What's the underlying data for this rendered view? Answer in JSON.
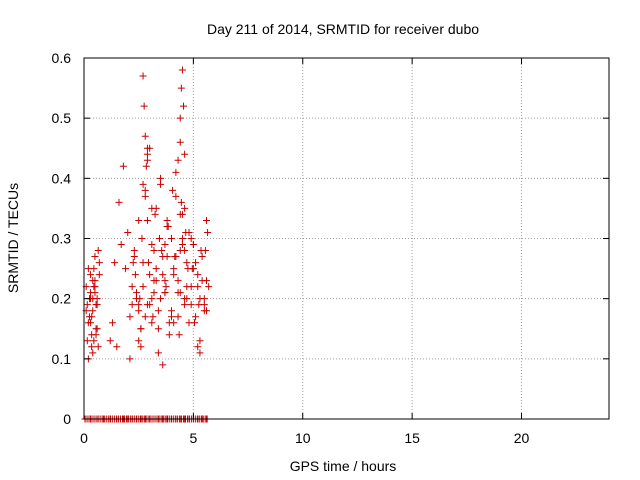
{
  "chart_data": {
    "type": "scatter",
    "title": "Day 211 of 2014, SRMTID for receiver dubo",
    "xlabel": "GPS time / hours",
    "ylabel": "SRMTID / TECUs",
    "xlim": [
      0,
      24
    ],
    "ylim": [
      0,
      0.6
    ],
    "xticks": [
      0,
      5,
      10,
      15,
      20
    ],
    "xtick_labels": [
      "0",
      "5",
      "10",
      "15",
      "20"
    ],
    "yticks": [
      0,
      0.1,
      0.2,
      0.3,
      0.4,
      0.5,
      0.6
    ],
    "ytick_labels": [
      "0",
      "0.1",
      "0.2",
      "0.3",
      "0.4",
      "0.5",
      "0.6"
    ],
    "grid": true,
    "marker": "+",
    "color": "#cc0000",
    "series": [
      {
        "name": "SRMTID",
        "x": [
          0.1,
          0.15,
          0.2,
          0.25,
          0.3,
          0.35,
          0.4,
          0.45,
          0.5,
          0.55,
          0.6,
          0.65,
          0.7,
          0.1,
          0.2,
          0.3,
          0.4,
          0.5,
          0.6,
          0.7,
          0.15,
          0.25,
          0.35,
          0.45,
          0.55,
          0.65,
          0.2,
          0.3,
          0.4,
          0.5,
          0.6,
          0.35,
          0.45,
          0.55,
          0.3,
          0.4,
          0.5,
          1.2,
          1.3,
          1.4,
          1.5,
          1.6,
          1.7,
          1.8,
          1.9,
          2.0,
          2.1,
          2.2,
          2.3,
          2.4,
          2.5,
          2.6,
          2.7,
          2.8,
          2.9,
          3.0,
          3.1,
          3.2,
          3.3,
          3.4,
          3.5,
          3.6,
          3.7,
          3.8,
          3.9,
          4.0,
          4.1,
          4.2,
          4.3,
          4.4,
          4.5,
          4.6,
          4.7,
          4.8,
          4.9,
          5.0,
          5.1,
          5.2,
          5.3,
          5.4,
          5.5,
          5.6,
          5.7,
          2.2,
          2.35,
          2.5,
          2.65,
          2.8,
          2.95,
          3.1,
          3.25,
          3.4,
          3.55,
          3.7,
          3.85,
          4.0,
          4.15,
          4.3,
          4.45,
          4.6,
          4.75,
          4.9,
          5.05,
          5.2,
          5.35,
          5.5,
          5.65,
          2.1,
          2.3,
          2.5,
          2.7,
          2.9,
          3.1,
          3.3,
          3.5,
          3.7,
          3.9,
          4.1,
          4.3,
          4.5,
          4.7,
          4.9,
          5.1,
          5.3,
          5.5,
          2.4,
          2.6,
          2.8,
          3.0,
          3.2,
          3.4,
          3.6,
          3.8,
          4.0,
          4.2,
          4.4,
          4.6,
          4.8,
          5.0,
          5.2,
          5.4,
          5.6,
          2.25,
          2.55,
          2.85,
          3.15,
          3.45,
          3.75,
          4.05,
          4.35,
          4.65,
          4.95,
          5.25,
          5.55,
          2.6,
          2.9,
          3.2,
          3.5,
          3.8,
          4.1,
          4.4,
          4.7,
          5.0,
          5.3,
          5.6,
          2.5,
          2.7,
          2.9,
          3.1,
          3.3,
          4.2,
          4.4,
          4.6,
          2.7,
          4.5,
          4.55,
          4.4,
          4.45,
          2.75,
          2.8,
          4.3,
          4.6,
          2.9,
          3.0,
          3.6,
          3.7,
          4.5,
          0.05,
          0.3,
          0.6,
          0.9,
          1.2,
          1.5,
          1.8,
          2.0,
          2.2,
          2.4,
          2.6,
          2.8,
          3.0,
          3.2,
          3.4,
          3.6,
          3.8,
          4.0,
          4.2,
          4.4,
          4.6,
          4.8,
          5.0,
          5.2,
          5.4,
          5.6
        ],
        "y": [
          0.22,
          0.19,
          0.25,
          0.17,
          0.2,
          0.14,
          0.23,
          0.13,
          0.27,
          0.15,
          0.2,
          0.12,
          0.24,
          0.18,
          0.16,
          0.21,
          0.11,
          0.23,
          0.19,
          0.26,
          0.13,
          0.2,
          0.17,
          0.22,
          0.14,
          0.28,
          0.1,
          0.24,
          0.18,
          0.21,
          0.15,
          0.12,
          0.25,
          0.19,
          0.16,
          0.2,
          0.22,
          0.13,
          0.16,
          0.26,
          0.12,
          0.36,
          0.29,
          0.42,
          0.25,
          0.31,
          0.17,
          0.22,
          0.28,
          0.2,
          0.33,
          0.15,
          0.26,
          0.38,
          0.19,
          0.24,
          0.29,
          0.21,
          0.35,
          0.18,
          0.4,
          0.27,
          0.23,
          0.33,
          0.16,
          0.3,
          0.25,
          0.37,
          0.21,
          0.28,
          0.34,
          0.19,
          0.26,
          0.31,
          0.22,
          0.29,
          0.17,
          0.24,
          0.2,
          0.27,
          0.19,
          0.23,
          0.22,
          0.19,
          0.24,
          0.13,
          0.3,
          0.17,
          0.26,
          0.2,
          0.34,
          0.15,
          0.28,
          0.21,
          0.32,
          0.18,
          0.27,
          0.23,
          0.36,
          0.2,
          0.25,
          0.3,
          0.16,
          0.22,
          0.28,
          0.18,
          0.31,
          0.1,
          0.27,
          0.18,
          0.22,
          0.33,
          0.16,
          0.25,
          0.2,
          0.29,
          0.14,
          0.24,
          0.17,
          0.3,
          0.22,
          0.19,
          0.26,
          0.13,
          0.2,
          0.21,
          0.15,
          0.37,
          0.19,
          0.28,
          0.11,
          0.24,
          0.32,
          0.17,
          0.27,
          0.21,
          0.35,
          0.16,
          0.29,
          0.12,
          0.23,
          0.18,
          0.26,
          0.2,
          0.42,
          0.17,
          0.3,
          0.22,
          0.38,
          0.14,
          0.31,
          0.25,
          0.19,
          0.28,
          0.12,
          0.45,
          0.23,
          0.39,
          0.27,
          0.16,
          0.34,
          0.2,
          0.25,
          0.11,
          0.33,
          0.19,
          0.39,
          0.44,
          0.35,
          0.23,
          0.41,
          0.46,
          0.28,
          0.57,
          0.58,
          0.52,
          0.5,
          0.55,
          0.52,
          0.47,
          0.43,
          0.44,
          0.43,
          0.45,
          0.09,
          0.21,
          0.29,
          0,
          0,
          0,
          0,
          0,
          0,
          0,
          0,
          0,
          0,
          0,
          0,
          0,
          0,
          0,
          0,
          0,
          0,
          0,
          0,
          0,
          0,
          0,
          0,
          0,
          0
        ]
      }
    ]
  }
}
